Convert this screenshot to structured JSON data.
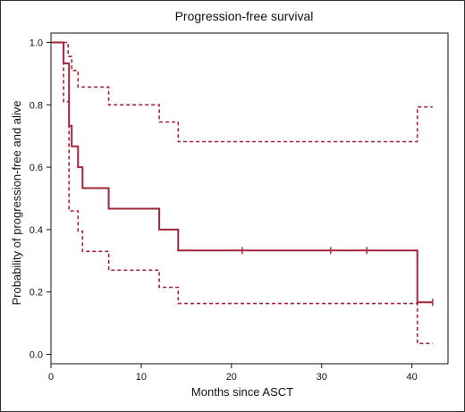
{
  "chart_data": {
    "type": "line",
    "title": "Progression-free survival",
    "xlabel": "Months since ASCT",
    "ylabel": "Probability of progression-free and alive",
    "xlim": [
      0,
      44
    ],
    "ylim": [
      -0.03,
      1.03
    ],
    "x_ticks": [
      0,
      10,
      20,
      30,
      40
    ],
    "x_tick_labels": [
      "0",
      "10",
      "20",
      "30",
      "40"
    ],
    "y_ticks": [
      0.0,
      0.2,
      0.4,
      0.6,
      0.8,
      1.0
    ],
    "y_tick_labels": [
      "0.0",
      "0.2",
      "0.4",
      "0.6",
      "0.8",
      "1.0"
    ],
    "grid": false,
    "legend": "none",
    "color": "#a3253a",
    "series": [
      {
        "style": "solid",
        "x": [
          0,
          1.4,
          1.4,
          2.0,
          2.0,
          2.3,
          2.3,
          3.0,
          3.0,
          3.5,
          3.5,
          6.4,
          6.4,
          12.0,
          12.0,
          14.1,
          14.1,
          40.6,
          40.6,
          42.3
        ],
        "y": [
          1.0,
          1.0,
          0.933,
          0.933,
          0.733,
          0.733,
          0.667,
          0.667,
          0.6,
          0.6,
          0.533,
          0.533,
          0.467,
          0.467,
          0.4,
          0.4,
          0.333,
          0.333,
          0.167,
          0.167
        ],
        "censor_x": [
          21.2,
          31.0,
          35.0,
          42.3
        ],
        "censor_y": [
          0.333,
          0.333,
          0.333,
          0.167
        ]
      },
      {
        "style": "dashed",
        "x": [
          0,
          1.9,
          1.9,
          2.3,
          2.3,
          3.0,
          3.0,
          3.5,
          3.5,
          6.4,
          6.4,
          12.0,
          12.0,
          14.1,
          14.1,
          40.6,
          40.6,
          42.3
        ],
        "y": [
          1.0,
          1.0,
          0.955,
          0.955,
          0.91,
          0.91,
          0.857,
          0.857,
          0.857,
          0.857,
          0.8,
          0.8,
          0.745,
          0.745,
          0.682,
          0.682,
          0.793,
          0.793
        ]
      },
      {
        "style": "dashed",
        "x": [
          1.4,
          1.4,
          2.0,
          2.0,
          2.3,
          2.3,
          3.0,
          3.0,
          3.5,
          3.5,
          6.4,
          6.4,
          12.0,
          12.0,
          14.1,
          14.1,
          40.6,
          40.6,
          42.3
        ],
        "y": [
          1.0,
          0.81,
          0.81,
          0.46,
          0.46,
          0.46,
          0.46,
          0.395,
          0.395,
          0.33,
          0.33,
          0.27,
          0.27,
          0.215,
          0.215,
          0.163,
          0.163,
          0.035,
          0.035
        ]
      }
    ]
  }
}
